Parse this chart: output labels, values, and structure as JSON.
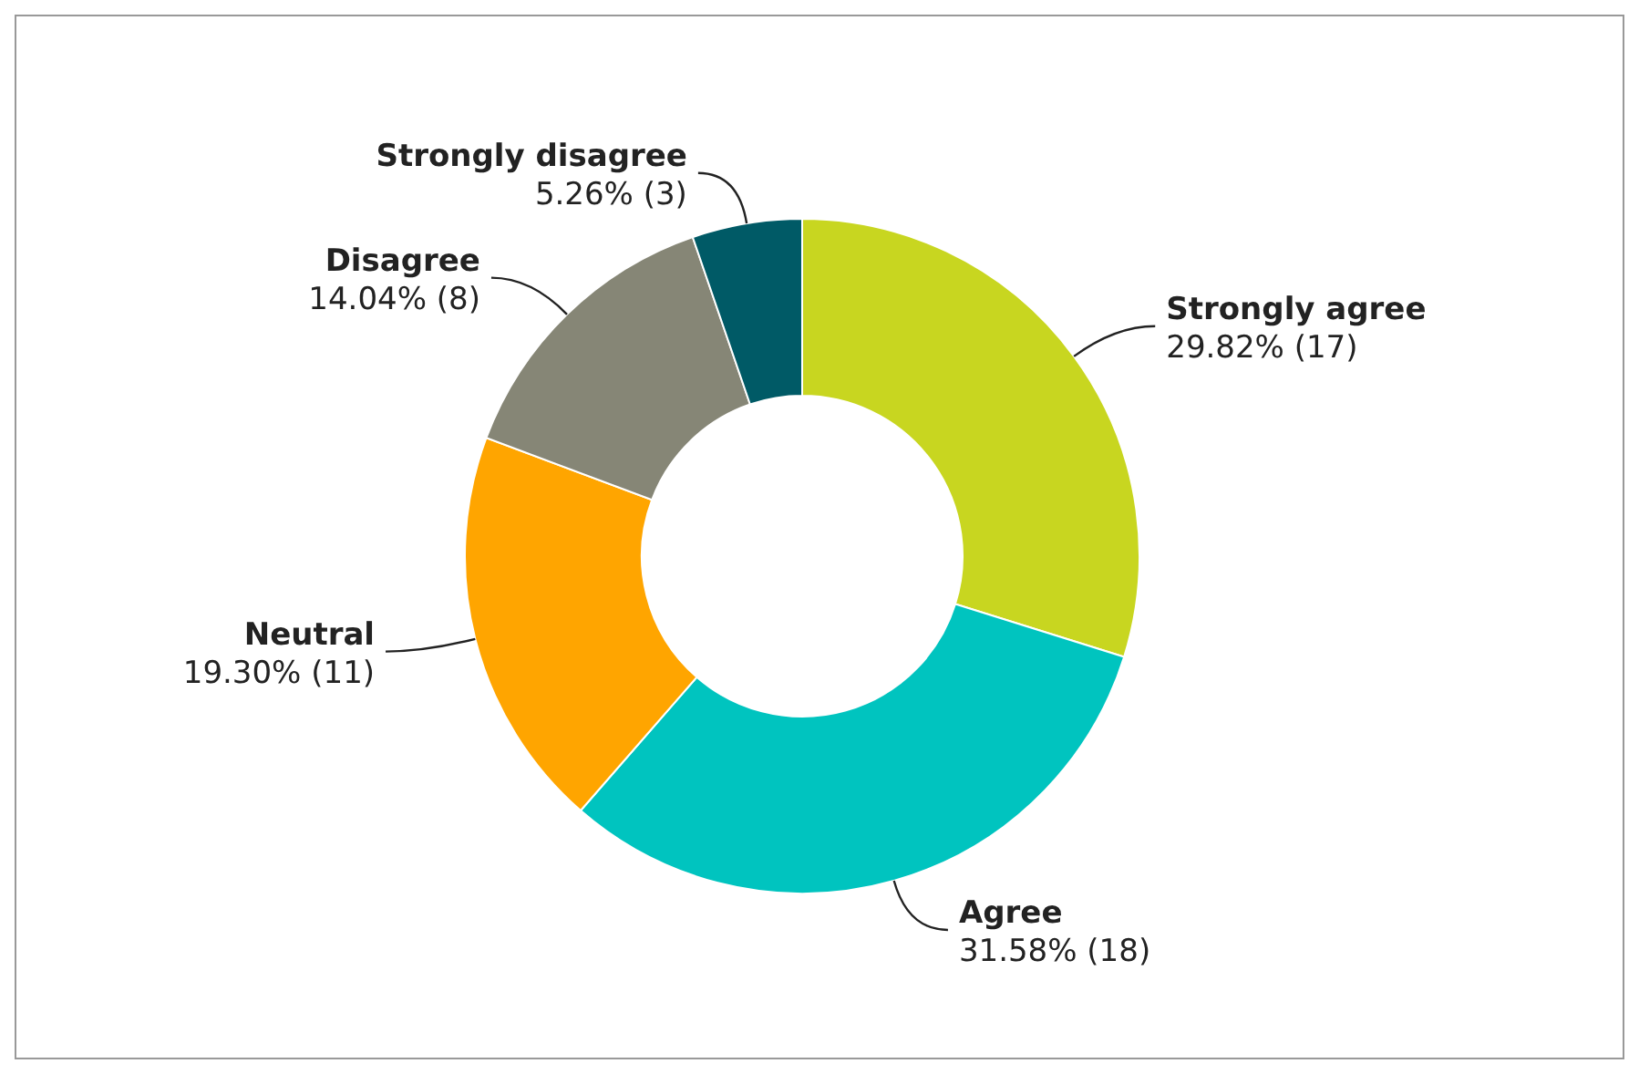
{
  "chart_data": {
    "type": "donut",
    "categories": [
      "Strongly agree",
      "Agree",
      "Neutral",
      "Disagree",
      "Strongly disagree"
    ],
    "values": [
      17,
      18,
      11,
      8,
      3
    ],
    "colors": [
      "#c8d620",
      "#00c4bf",
      "#ffa500",
      "#868676",
      "#005a66"
    ],
    "value_labels": [
      "29.82% (17)",
      "31.58% (18)",
      "19.30% (11)",
      "14.04% (8)",
      "5.26% (3)"
    ]
  }
}
